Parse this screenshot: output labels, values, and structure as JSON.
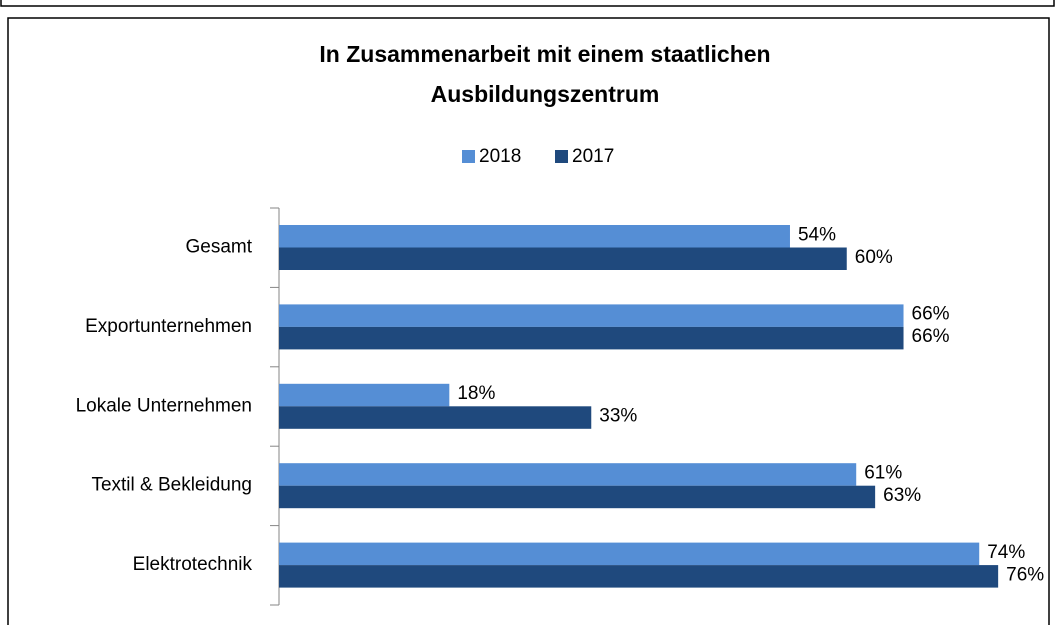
{
  "chart_data": {
    "type": "bar",
    "orientation": "horizontal",
    "title": [
      "In Zusammenarbeit mit einem staatlichen",
      "Ausbildungszentrum"
    ],
    "categories": [
      "Gesamt",
      "Exportunternehmen",
      "Lokale Unternehmen",
      "Textil & Bekleidung",
      "Elektrotechnik"
    ],
    "series": [
      {
        "name": "2018",
        "color": "#558ed5",
        "values": [
          54,
          66,
          18,
          61,
          74
        ],
        "value_labels": [
          "54%",
          "66%",
          "18%",
          "61%",
          "74%"
        ]
      },
      {
        "name": "2017",
        "color": "#1f497d",
        "values": [
          60,
          66,
          33,
          63,
          76
        ],
        "value_labels": [
          "60%",
          "66%",
          "33%",
          "63%",
          "76%"
        ]
      }
    ],
    "xlim": [
      0,
      80
    ],
    "legend": "top"
  }
}
